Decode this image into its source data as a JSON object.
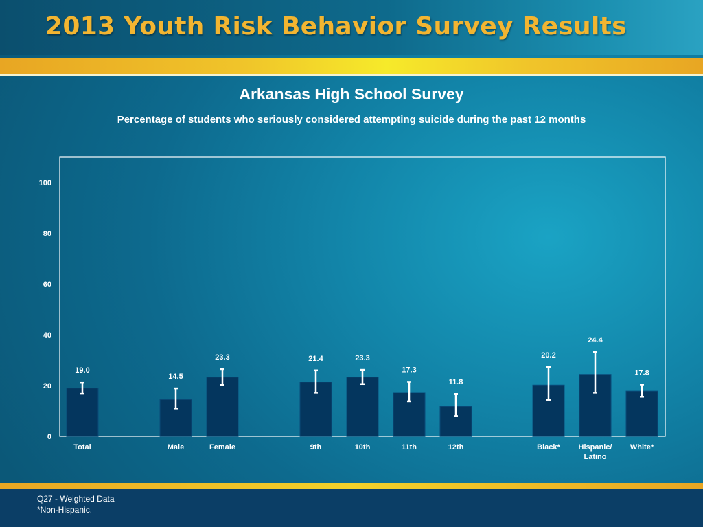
{
  "header": {
    "title": "2013 Youth Risk Behavior Survey Results"
  },
  "footer": {
    "note1": "Q27 - Weighted Data",
    "note2": "*Non-Hispanic."
  },
  "chart_data": {
    "type": "bar",
    "title": "Arkansas High School Survey",
    "subtitle": "Percentage of students who seriously considered attempting suicide during the past 12 months",
    "categories": [
      "Total",
      "Male",
      "Female",
      "9th",
      "10th",
      "11th",
      "12th",
      "Black*",
      "Hispanic/ Latino",
      "White*"
    ],
    "groups": [
      [
        "Total"
      ],
      [
        "Male",
        "Female"
      ],
      [
        "9th",
        "10th",
        "11th",
        "12th"
      ],
      [
        "Black*",
        "Hispanic/ Latino",
        "White*"
      ]
    ],
    "values": [
      19.0,
      14.5,
      23.3,
      21.4,
      23.3,
      17.3,
      11.8,
      20.2,
      24.4,
      17.8
    ],
    "value_labels": [
      "19.0",
      "14.5",
      "23.3",
      "21.4",
      "23.3",
      "17.3",
      "11.8",
      "20.2",
      "24.4",
      "17.8"
    ],
    "error_low": [
      17.0,
      11.0,
      20.2,
      17.2,
      20.6,
      13.8,
      8.0,
      14.4,
      17.2,
      15.6
    ],
    "error_high": [
      21.3,
      18.9,
      26.5,
      26.0,
      26.2,
      21.5,
      16.8,
      27.3,
      33.2,
      20.4
    ],
    "yticks": [
      0,
      20,
      40,
      60,
      80,
      100
    ],
    "ylim": [
      0,
      110
    ],
    "xlabel": "",
    "ylabel": "",
    "grid": false,
    "colors": {
      "bar": "#04365e",
      "bar_edge": "#0a4a78",
      "error_bar": "#ffffff",
      "text": "#ffffff",
      "plot_border": "#ffffff"
    }
  }
}
